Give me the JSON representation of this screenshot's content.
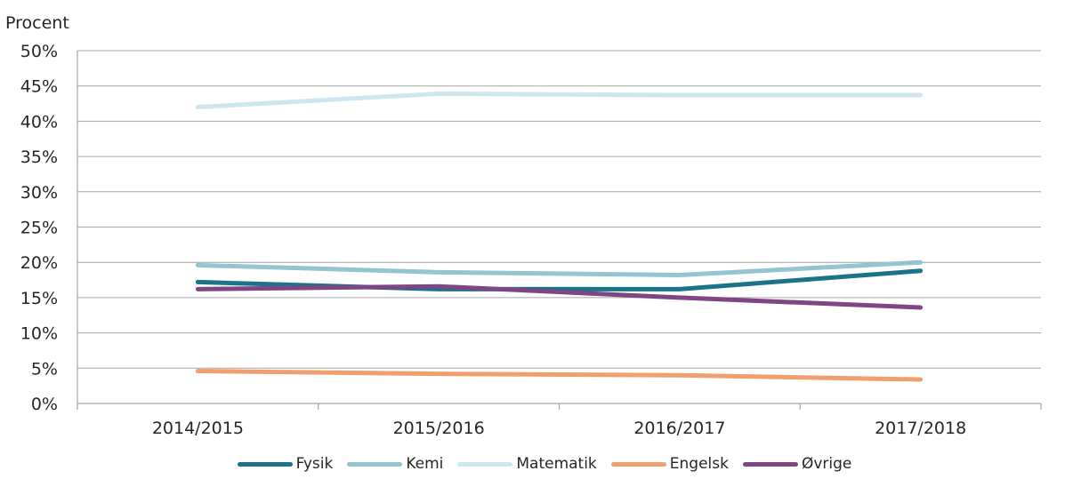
{
  "chart_data": {
    "type": "line",
    "ylabel": "Procent",
    "categories": [
      "2014/2015",
      "2015/2016",
      "2016/2017",
      "2017/2018"
    ],
    "ylim": [
      0,
      50
    ],
    "yticks": [
      "0%",
      "5%",
      "10%",
      "15%",
      "20%",
      "25%",
      "30%",
      "35%",
      "40%",
      "45%",
      "50%"
    ],
    "grid": true,
    "legend_position": "bottom",
    "series": [
      {
        "name": "Fysik",
        "color": "#1a7388",
        "values": [
          17.2,
          16.2,
          16.2,
          18.8
        ]
      },
      {
        "name": "Kemi",
        "color": "#93c4cf",
        "values": [
          19.6,
          18.6,
          18.2,
          20.0
        ]
      },
      {
        "name": "Matematik",
        "color": "#d0e6ee",
        "values": [
          42.0,
          43.9,
          43.7,
          43.7
        ]
      },
      {
        "name": "Engelsk",
        "color": "#f0a070",
        "values": [
          4.6,
          4.2,
          4.0,
          3.4
        ]
      },
      {
        "name": "Øvrige",
        "color": "#7e4682",
        "values": [
          16.2,
          16.6,
          15.0,
          13.6
        ]
      }
    ]
  }
}
